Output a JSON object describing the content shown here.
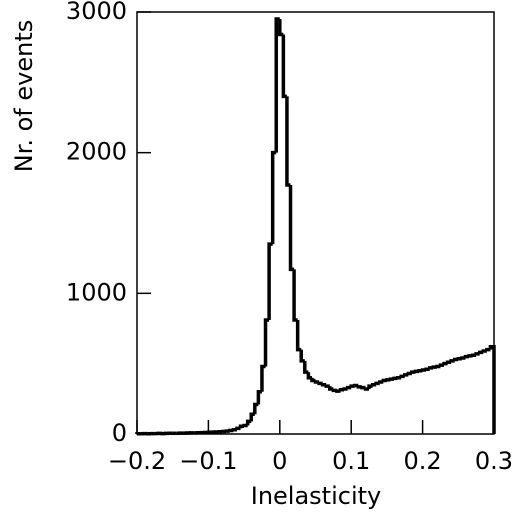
{
  "chart_data": {
    "type": "histogram",
    "xlabel": "Inelasticity",
    "ylabel": "Nr. of events",
    "bins": [
      -0.2,
      -0.195,
      -0.19,
      -0.185,
      -0.18,
      -0.175,
      -0.17,
      -0.165,
      -0.16,
      -0.155,
      -0.15,
      -0.145,
      -0.14,
      -0.135,
      -0.13,
      -0.125,
      -0.12,
      -0.115,
      -0.11,
      -0.105,
      -0.1,
      -0.095,
      -0.09,
      -0.085,
      -0.08,
      -0.075,
      -0.07,
      -0.065,
      -0.06,
      -0.055,
      -0.05,
      -0.045,
      -0.04,
      -0.035,
      -0.03,
      -0.025,
      -0.02,
      -0.015,
      -0.01,
      -0.005,
      0,
      0.005,
      0.01,
      0.015,
      0.02,
      0.025,
      0.03,
      0.035,
      0.04,
      0.045,
      0.05,
      0.055,
      0.06,
      0.065,
      0.07,
      0.075,
      0.08,
      0.085,
      0.09,
      0.095,
      0.1,
      0.105,
      0.11,
      0.115,
      0.12,
      0.125,
      0.13,
      0.135,
      0.14,
      0.145,
      0.15,
      0.155,
      0.16,
      0.165,
      0.17,
      0.175,
      0.18,
      0.185,
      0.19,
      0.195,
      0.2,
      0.205,
      0.21,
      0.215,
      0.22,
      0.225,
      0.23,
      0.235,
      0.24,
      0.245,
      0.25,
      0.255,
      0.26,
      0.265,
      0.27,
      0.275,
      0.28,
      0.285,
      0.29,
      0.295,
      0.3
    ],
    "counts": [
      2,
      2,
      3,
      2,
      3,
      3,
      4,
      3,
      4,
      5,
      5,
      5,
      6,
      6,
      7,
      8,
      8,
      9,
      10,
      11,
      12,
      13,
      14,
      16,
      18,
      20,
      25,
      30,
      40,
      55,
      60,
      90,
      140,
      210,
      300,
      480,
      810,
      1350,
      2000,
      2950,
      2840,
      2400,
      1770,
      1170,
      810,
      600,
      520,
      440,
      400,
      380,
      370,
      360,
      350,
      340,
      320,
      310,
      305,
      315,
      320,
      330,
      340,
      345,
      335,
      330,
      320,
      340,
      350,
      360,
      370,
      380,
      385,
      390,
      395,
      400,
      410,
      420,
      430,
      440,
      445,
      450,
      455,
      460,
      470,
      475,
      480,
      490,
      500,
      510,
      520,
      530,
      535,
      540,
      550,
      555,
      560,
      570,
      580,
      590,
      600,
      620
    ],
    "color": "#000000",
    "xlim": [
      -0.2,
      0.3
    ],
    "ylim": [
      0,
      3000
    ],
    "xticks": [
      {
        "value": -0.2,
        "label": "−0.2"
      },
      {
        "value": -0.1,
        "label": "−0.1"
      },
      0,
      0.1,
      0.2,
      0.3
    ],
    "yticks": [
      0,
      1000,
      2000,
      3000
    ]
  }
}
